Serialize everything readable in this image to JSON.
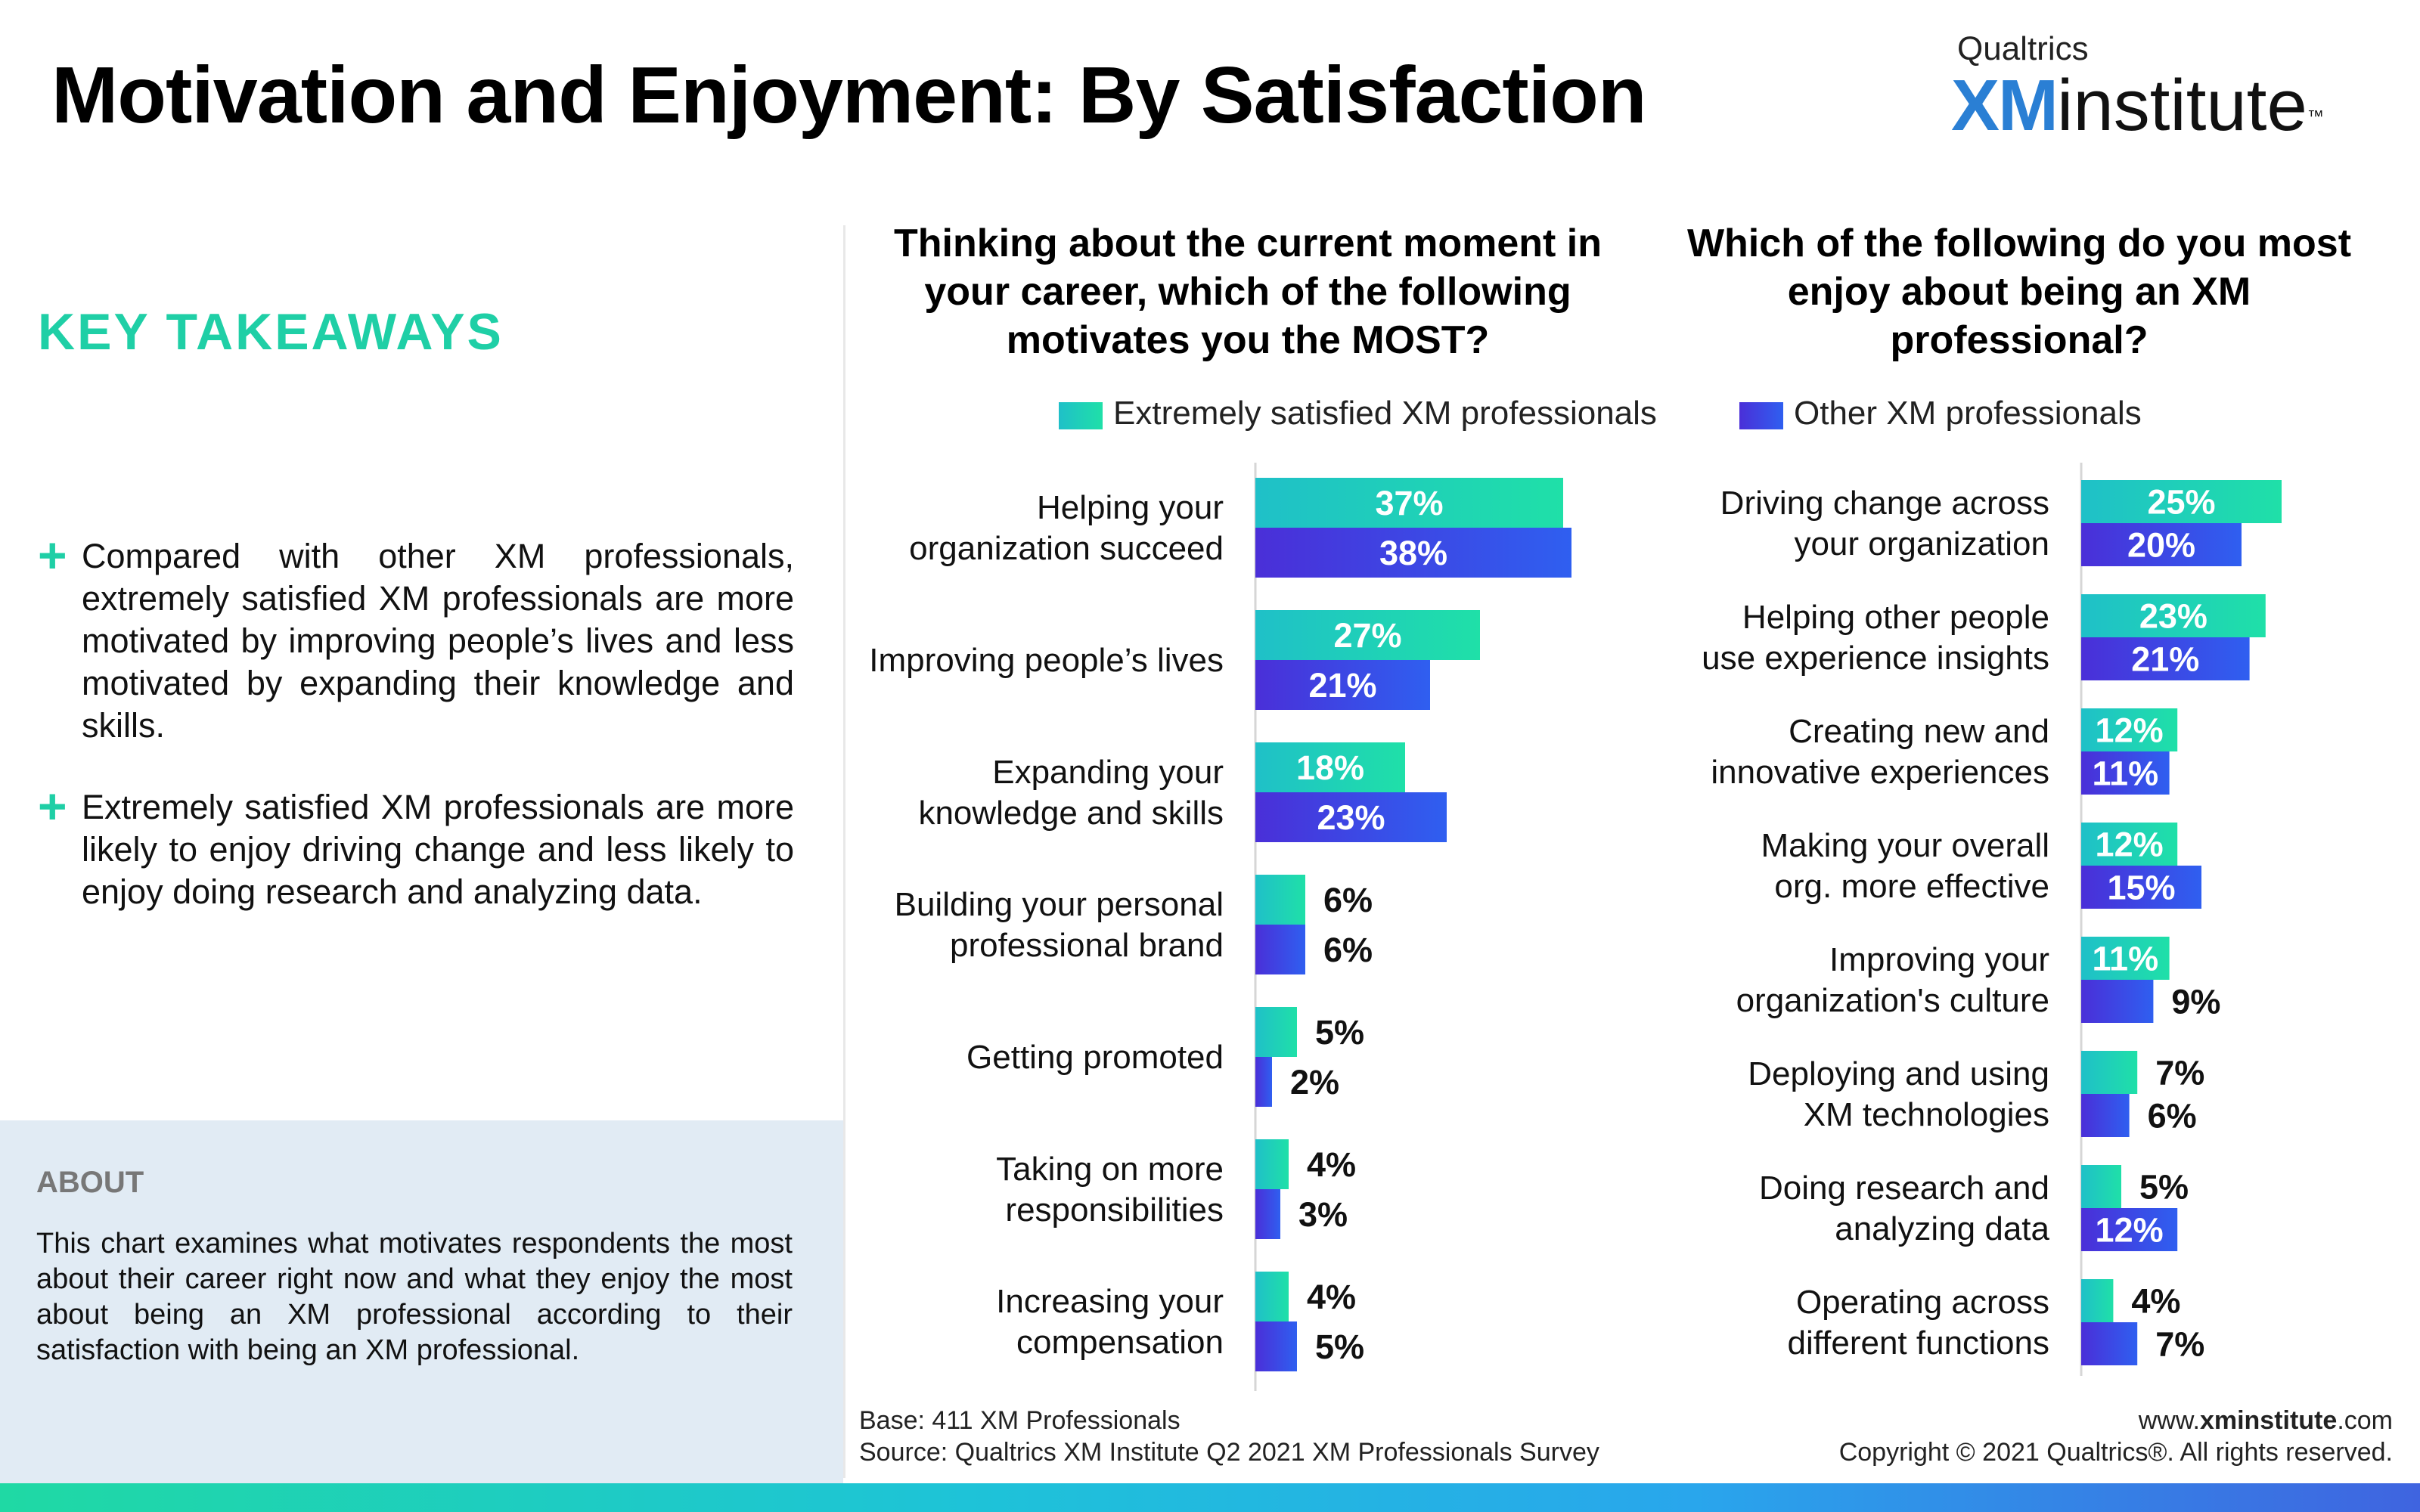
{
  "title": "Motivation and Enjoyment: By Satisfaction",
  "logo": {
    "brand": "Qualtrics",
    "xm": "XM",
    "name": "institute",
    "tm": "™"
  },
  "key_takeaways": {
    "heading": "KEY TAKEAWAYS",
    "items": [
      "Compared with other XM professionals, extremely satisfied XM professionals are more motivated by improving people’s lives and less motivated by expanding their knowledge and skills.",
      "Extremely satisfied XM professionals are more likely to enjoy driving change and less likely to enjoy doing research and analyzing data."
    ]
  },
  "about": {
    "title": "ABOUT",
    "text": "This chart examines what motivates respondents the most about their career right now and what they enjoy the most about being an XM professional according to their satisfaction with being an XM professional."
  },
  "legend": [
    {
      "label": "Extremely satisfied XM professionals",
      "color": "#1fd0b0"
    },
    {
      "label": "Other XM professionals",
      "color": "#3b4be0"
    }
  ],
  "colors": {
    "satisfied_start": "#1fc0c8",
    "satisfied_end": "#1fe0a8",
    "other_start": "#4a2fd8",
    "other_end": "#2f5ff0",
    "accent": "#1fcfa6"
  },
  "chart_data": [
    {
      "type": "bar",
      "orientation": "horizontal",
      "title": "Thinking about the current moment in your career, which of the following motivates you the MOST?",
      "categories": [
        "Helping your organization succeed",
        "Improving people’s lives",
        "Expanding your knowledge and skills",
        "Building your personal professional brand",
        "Getting promoted",
        "Taking on more responsibilities",
        "Increasing your compensation"
      ],
      "category_lines": [
        [
          "Helping your",
          "organization succeed"
        ],
        [
          "Improving people’s lives"
        ],
        [
          "Expanding your",
          "knowledge and skills"
        ],
        [
          "Building your personal",
          "professional brand"
        ],
        [
          "Getting promoted"
        ],
        [
          "Taking on more",
          "responsibilities"
        ],
        [
          "Increasing your",
          "compensation"
        ]
      ],
      "series": [
        {
          "name": "Extremely satisfied XM professionals",
          "values": [
            37,
            27,
            18,
            6,
            5,
            4,
            4
          ]
        },
        {
          "name": "Other XM professionals",
          "values": [
            38,
            21,
            23,
            6,
            2,
            3,
            5
          ]
        }
      ],
      "unit": "%"
    },
    {
      "type": "bar",
      "orientation": "horizontal",
      "title": "Which of the following do you most enjoy about being an XM professional?",
      "categories": [
        "Driving change across your organization",
        "Helping other people use experience insights",
        "Creating new and innovative experiences",
        "Making your overall org. more effective",
        "Improving your organization's culture",
        "Deploying and using XM technologies",
        "Doing research and analyzing data",
        "Operating across different functions"
      ],
      "category_lines": [
        [
          "Driving change across",
          "your organization"
        ],
        [
          "Helping other people",
          "use experience insights"
        ],
        [
          "Creating new and",
          "innovative experiences"
        ],
        [
          "Making your overall",
          "org. more effective"
        ],
        [
          "Improving your",
          "organization's culture"
        ],
        [
          "Deploying and using",
          "XM technologies"
        ],
        [
          "Doing research and",
          "analyzing data"
        ],
        [
          "Operating across",
          "different functions"
        ]
      ],
      "series": [
        {
          "name": "Extremely satisfied XM professionals",
          "values": [
            25,
            23,
            12,
            12,
            11,
            7,
            5,
            4
          ]
        },
        {
          "name": "Other XM professionals",
          "values": [
            20,
            21,
            11,
            15,
            9,
            6,
            12,
            7
          ]
        }
      ],
      "unit": "%"
    }
  ],
  "footer": {
    "base": "Base: 411 XM Professionals",
    "source": "Source: Qualtrics XM Institute Q2 2021 XM Professionals Survey",
    "url_prefix": "www.",
    "url_bold": "xminstitute",
    "url_suffix": ".com",
    "copyright": "Copyright © 2021 Qualtrics®. All rights reserved."
  }
}
